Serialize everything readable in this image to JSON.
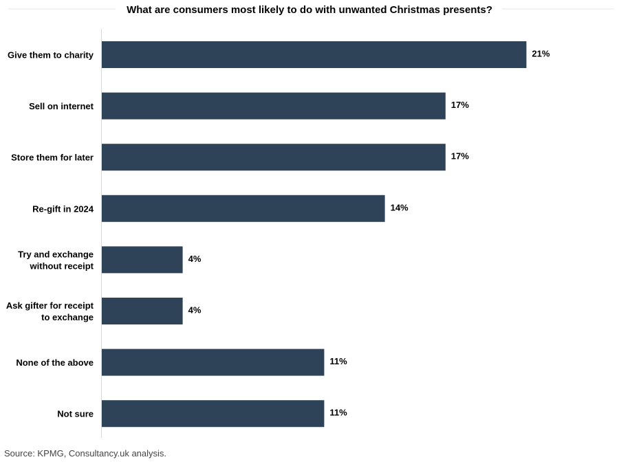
{
  "chart_data": {
    "type": "bar",
    "orientation": "horizontal",
    "title": "What are consumers most likely to do with unwanted Christmas presents?",
    "categories": [
      [
        "Give them to charity"
      ],
      [
        "Sell on internet"
      ],
      [
        "Store them for later"
      ],
      [
        "Re-gift in 2024"
      ],
      [
        "Try and exchange",
        "without receipt"
      ],
      [
        "Ask gifter for receipt",
        "to exchange"
      ],
      [
        "None of the above"
      ],
      [
        "Not sure"
      ]
    ],
    "values": [
      21,
      17,
      17,
      14,
      4,
      4,
      11,
      11
    ],
    "value_labels": [
      "21%",
      "17%",
      "17%",
      "14%",
      "4%",
      "4%",
      "11%",
      "11%"
    ],
    "unit": "%",
    "xlim": [
      0,
      22
    ],
    "grid": false,
    "bar_color": "#2e4358"
  },
  "source": "Source: KPMG, Consultancy.uk analysis."
}
